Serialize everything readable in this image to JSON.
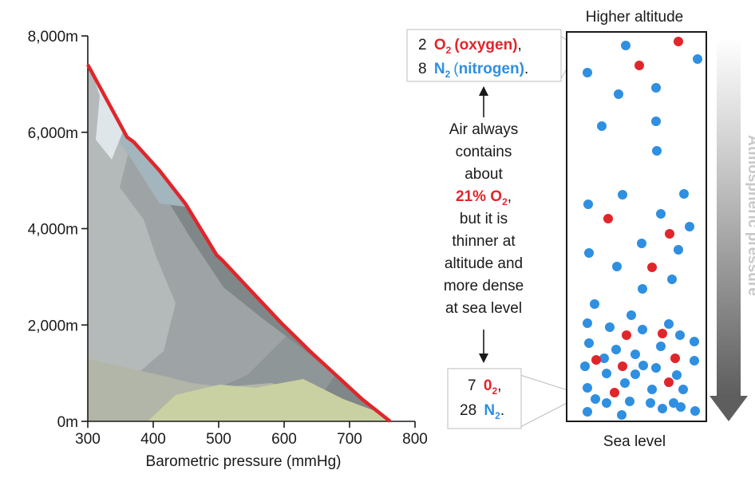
{
  "chart_data": {
    "type": "area",
    "xlabel": "Barometric pressure (mmHg)",
    "ylabel": "",
    "xlim": [
      300,
      800
    ],
    "ylim": [
      0,
      8000
    ],
    "x_ticks": [
      "300",
      "400",
      "500",
      "600",
      "700",
      "800"
    ],
    "y_ticks": [
      "0m",
      "2,000m",
      "4,000m",
      "6,000m",
      "8,000m"
    ],
    "curve": {
      "x": [
        300,
        360,
        370,
        410,
        450,
        497,
        505,
        550,
        595,
        640,
        680,
        720,
        762
      ],
      "y": [
        7400,
        5900,
        5800,
        5200,
        4500,
        3450,
        3350,
        2700,
        2050,
        1450,
        950,
        450,
        0
      ]
    },
    "line_color": "#e0262b"
  },
  "column": {
    "top_label": "Higher altitude",
    "bottom_label": "Sea level",
    "arrow_label": "Atmospheric pressure"
  },
  "top_callout": {
    "line1_count": "2",
    "o2_formula": "O",
    "o2_sub": "2",
    "o2_name": "(oxygen)",
    "line1_end": ",",
    "line2_count": "8",
    "n2_formula": "N",
    "n2_sub": "2",
    "n2_open": "(",
    "n2_name": "nitrogen)",
    "line2_end": "."
  },
  "bottom_callout": {
    "line1_count": "7",
    "o2_formula": "0",
    "o2_sub": "2",
    "line1_end": ",",
    "line2_count": "28",
    "n2_formula": "N",
    "n2_sub": "2",
    "line2_end": "."
  },
  "middle_text": {
    "line1": "Air always",
    "line2": "contains",
    "line3": "about",
    "pct_main": "21% O",
    "pct_sub": "2",
    "pct_end": ",",
    "line5": "but it is",
    "line6": "thinner at",
    "line7": "altitude and",
    "line8": "more dense",
    "line9": "at sea level"
  },
  "colors": {
    "oxygen": "#e0262b",
    "nitrogen": "#2f8fe0"
  }
}
